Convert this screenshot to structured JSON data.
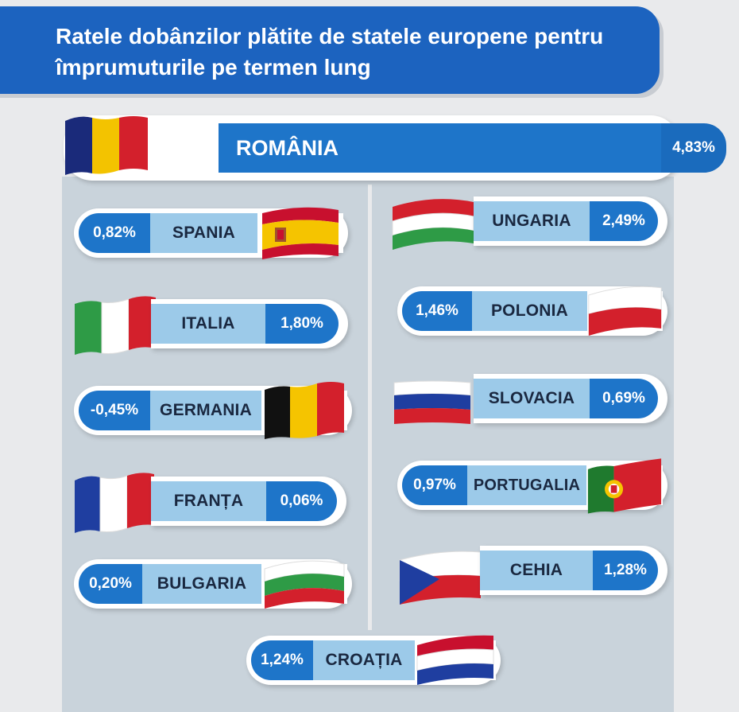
{
  "title": "Ratele dobânzilor plătite de statele europene pentru împrumuturile pe termen lung",
  "featured": {
    "country": "ROMÂNIA",
    "rate": "4,83%",
    "flag_icon": "romania-flag-icon"
  },
  "left_column": [
    {
      "country": "SPANIA",
      "rate": "0,82%",
      "flag_icon": "spain-flag-icon"
    },
    {
      "country": "ITALIA",
      "rate": "1,80%",
      "flag_icon": "italy-flag-icon"
    },
    {
      "country": "GERMANIA",
      "rate": "-0,45%",
      "flag_icon": "germany-flag-icon"
    },
    {
      "country": "FRANȚA",
      "rate": "0,06%",
      "flag_icon": "france-flag-icon"
    },
    {
      "country": "BULGARIA",
      "rate": "0,20%",
      "flag_icon": "bulgaria-flag-icon"
    }
  ],
  "right_column": [
    {
      "country": "UNGARIA",
      "rate": "2,49%",
      "flag_icon": "hungary-flag-icon"
    },
    {
      "country": "POLONIA",
      "rate": "1,46%",
      "flag_icon": "poland-flag-icon"
    },
    {
      "country": "SLOVACIA",
      "rate": "0,69%",
      "flag_icon": "slovakia-flag-icon"
    },
    {
      "country": "PORTUGALIA",
      "rate": "0,97%",
      "flag_icon": "portugal-flag-icon"
    },
    {
      "country": "CEHIA",
      "rate": "1,28%",
      "flag_icon": "czechia-flag-icon"
    }
  ],
  "bottom": {
    "country": "CROAȚIA",
    "rate": "1,24%",
    "flag_icon": "croatia-flag-icon"
  },
  "colors": {
    "header_blue": "#1c63bf",
    "rate_blue": "#1e75c9",
    "name_light_blue": "#9ccae9",
    "panel_gray": "#c9d3db"
  }
}
